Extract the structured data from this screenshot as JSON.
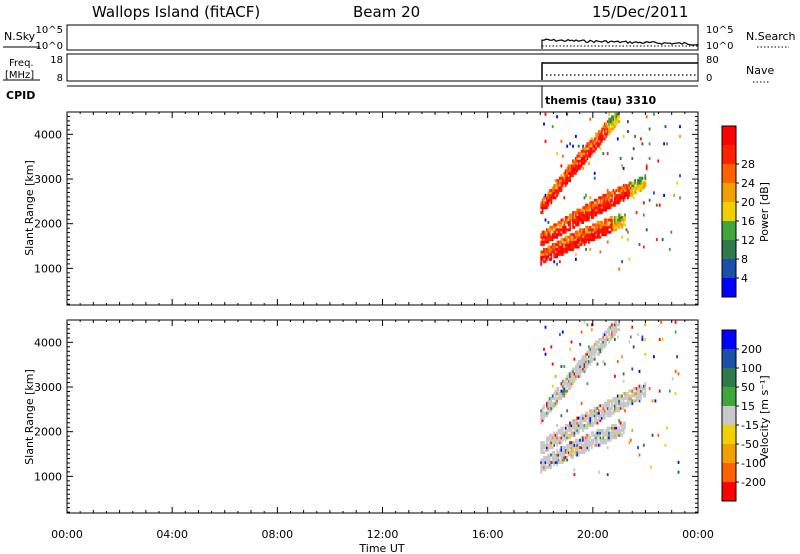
{
  "header": {
    "station": "Wallops Island (fitACF)",
    "beam": "Beam 20",
    "date": "15/Dec/2011"
  },
  "strip_panels": {
    "nsky": {
      "left_label": "N.Sky",
      "right_label": "N.Search",
      "left_ticks": [
        "10^5",
        "10^0"
      ],
      "right_ticks": [
        "10^5",
        "10^0"
      ]
    },
    "freq": {
      "left_label_line1": "Freq.",
      "left_label_line2": "[MHz]",
      "right_label": "Nave",
      "left_ticks": [
        "18",
        "8"
      ],
      "right_ticks": [
        "80",
        "0"
      ]
    },
    "cpid": {
      "label": "CPID",
      "program": "themis (tau) 3310",
      "start_hour": 18.0
    }
  },
  "power_colorbar": {
    "title": "Power [dB]",
    "colors": [
      "#0000ff",
      "#1c4fa8",
      "#2f7a4a",
      "#3ea63c",
      "#f0d000",
      "#f0a000",
      "#ff6000",
      "#ff2000",
      "#ff0000"
    ],
    "ticks": [
      "4",
      "8",
      "12",
      "16",
      "20",
      "24",
      "28"
    ]
  },
  "velocity_colorbar": {
    "title": "Velocity [m s⁻¹]",
    "colors": [
      "#ff0000",
      "#ff6000",
      "#f0a000",
      "#f0d000",
      "#c8c8c8",
      "#3ea63c",
      "#2f7a4a",
      "#1c4fa8",
      "#0000ff"
    ],
    "ticks": [
      "-200",
      "-100",
      "-50",
      "-15",
      "15",
      "50",
      "100",
      "200"
    ]
  },
  "chart_data": {
    "type": "heatmap",
    "title": "Wallops Island (fitACF) Beam 20 15/Dec/2011",
    "xlabel": "Time UT",
    "ylabel": "Slant Range [km]",
    "x_ticks": [
      "00:00",
      "04:00",
      "08:00",
      "12:00",
      "16:00",
      "20:00",
      "00:00"
    ],
    "x_range_hours": [
      0,
      24
    ],
    "y_ticks": [
      "1000",
      "2000",
      "3000",
      "4000"
    ],
    "y_range_km": [
      180,
      4500
    ],
    "observation_start_hour": 18.0,
    "features": [
      {
        "name": "lower band",
        "start_hour": 18.0,
        "end_hour": 21.2,
        "range_start_km": 1100,
        "range_end_km": 1950
      },
      {
        "name": "middle band",
        "start_hour": 18.0,
        "end_hour": 22.0,
        "range_start_km": 1500,
        "range_end_km": 2800
      },
      {
        "name": "upper band",
        "start_hour": 18.0,
        "end_hour": 21.0,
        "range_start_km": 2200,
        "range_end_km": 4300
      }
    ],
    "power_range_db": [
      0,
      30
    ],
    "velocity_range_ms": [
      -250,
      250
    ]
  }
}
